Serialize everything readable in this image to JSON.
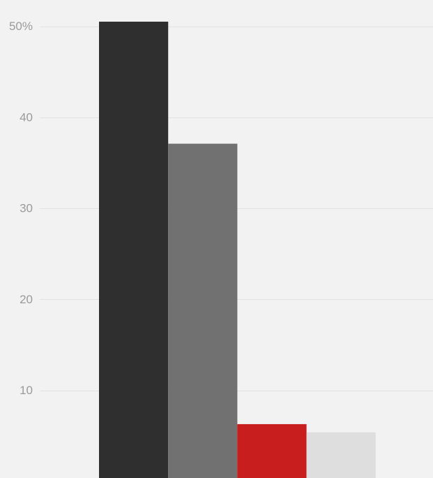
{
  "chart_data": {
    "type": "bar",
    "values": [
      50.5,
      37.1,
      6.3,
      5.4
    ],
    "colors": [
      "#2f2f2f",
      "#717171",
      "#c81e1e",
      "#dedede"
    ],
    "ylim": [
      0,
      51.5
    ],
    "yticks": [
      10,
      20,
      30,
      40,
      50
    ],
    "ytick_labels": [
      "10",
      "20",
      "30",
      "40",
      "50%"
    ],
    "grid": true,
    "background": "#f2f2f2"
  }
}
